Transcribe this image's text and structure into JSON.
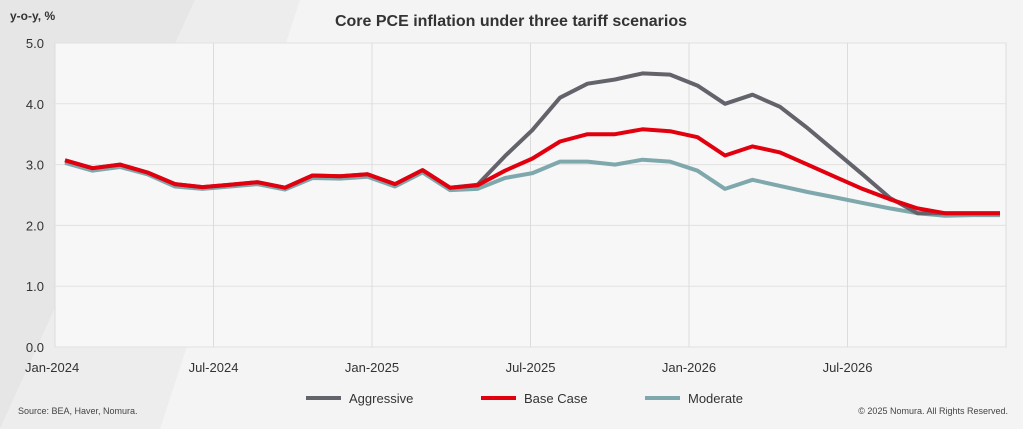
{
  "chart_data": {
    "type": "line",
    "title": "Core PCE inflation under three tariff scenarios",
    "ylabel": "y-o-y, %",
    "xlabel": "",
    "ylim": [
      0,
      5
    ],
    "yticks": [
      "0.0",
      "1.0",
      "2.0",
      "3.0",
      "4.0",
      "5.0"
    ],
    "xticks": [
      {
        "label": "Jan-2024",
        "month": 0
      },
      {
        "label": "Jul-2024",
        "month": 6
      },
      {
        "label": "Jan-2025",
        "month": 12
      },
      {
        "label": "Jul-2025",
        "month": 18
      },
      {
        "label": "Jan-2026",
        "month": 24
      },
      {
        "label": "Jul-2026",
        "month": 30
      }
    ],
    "x_end_month": 36,
    "grid": true,
    "legend": "bottom-center",
    "series": [
      {
        "name": "Aggressive",
        "color": "#63636b",
        "values": [
          3.07,
          2.94,
          3.0,
          2.87,
          2.68,
          2.63,
          2.67,
          2.71,
          2.62,
          2.82,
          2.81,
          2.84,
          2.68,
          2.91,
          2.62,
          2.67,
          3.14,
          3.57,
          4.1,
          4.33,
          4.4,
          4.5,
          4.48,
          4.3,
          4.0,
          4.15,
          3.95,
          3.6,
          3.22,
          2.84,
          2.45,
          2.2,
          2.2,
          2.2,
          2.2
        ]
      },
      {
        "name": "Base Case",
        "color": "#e2000f",
        "values": [
          3.07,
          2.94,
          3.0,
          2.87,
          2.68,
          2.63,
          2.67,
          2.71,
          2.62,
          2.82,
          2.81,
          2.84,
          2.68,
          2.91,
          2.62,
          2.66,
          2.9,
          3.1,
          3.38,
          3.5,
          3.5,
          3.58,
          3.55,
          3.45,
          3.15,
          3.3,
          3.2,
          3.0,
          2.8,
          2.6,
          2.43,
          2.28,
          2.2,
          2.2,
          2.2
        ]
      },
      {
        "name": "Moderate",
        "color": "#7fa8ad",
        "values": [
          3.03,
          2.9,
          2.96,
          2.84,
          2.64,
          2.6,
          2.64,
          2.68,
          2.59,
          2.78,
          2.77,
          2.8,
          2.64,
          2.87,
          2.58,
          2.6,
          2.78,
          2.86,
          3.05,
          3.05,
          3.0,
          3.08,
          3.05,
          2.9,
          2.6,
          2.75,
          2.65,
          2.55,
          2.46,
          2.37,
          2.28,
          2.2,
          2.16,
          2.17,
          2.17
        ]
      }
    ]
  },
  "footer": {
    "source": "Source: BEA, Haver, Nomura.",
    "copyright": "© 2025 Nomura. All Rights Reserved."
  }
}
